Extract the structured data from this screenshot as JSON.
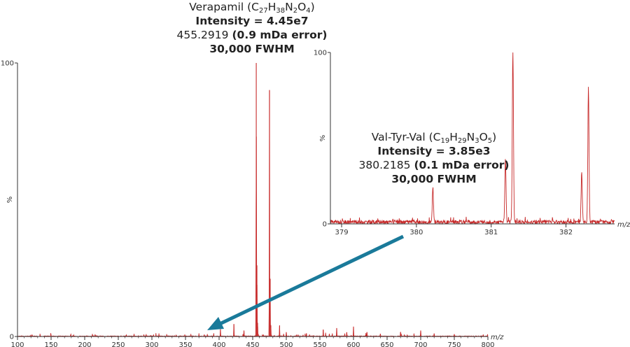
{
  "colors": {
    "spectrum": "#c62828",
    "arrow": "#1a7a9a",
    "axis": "#333333"
  },
  "annotations": {
    "verapamil": {
      "name": "Verapamil",
      "formula": [
        [
          "C",
          "27"
        ],
        [
          "H",
          "38"
        ],
        [
          "N",
          "2"
        ],
        [
          "O",
          "4"
        ]
      ],
      "intensity": "Intensity = 4.45e7",
      "mass": "455.2919",
      "error": "(0.9 mDa error)",
      "resolution": "30,000 FWHM"
    },
    "valtyrval": {
      "name": "Val-Tyr-Val",
      "formula": [
        [
          "C",
          "19"
        ],
        [
          "H",
          "29"
        ],
        [
          "N",
          "3"
        ],
        [
          "O",
          "5"
        ]
      ],
      "intensity": "Intensity = 3.85e3",
      "mass": "380.2185",
      "error": "(0.1 mDa error)",
      "resolution": "30,000 FWHM"
    }
  },
  "chart_data": [
    {
      "type": "line",
      "name": "main-spectrum",
      "xlabel": "m/z",
      "ylabel": "%",
      "xlim": [
        100,
        800
      ],
      "ylim": [
        0,
        100
      ],
      "x_ticks": [
        100,
        150,
        200,
        250,
        300,
        350,
        400,
        450,
        500,
        550,
        600,
        650,
        700,
        750,
        800
      ],
      "y_ticks": [
        0,
        100
      ],
      "peaks": [
        {
          "x": 402,
          "y": 2.5
        },
        {
          "x": 422,
          "y": 4.5
        },
        {
          "x": 437,
          "y": 2
        },
        {
          "x": 455.3,
          "y": 100
        },
        {
          "x": 456.3,
          "y": 26
        },
        {
          "x": 457.3,
          "y": 5
        },
        {
          "x": 475,
          "y": 90
        },
        {
          "x": 476,
          "y": 21
        },
        {
          "x": 477,
          "y": 4
        },
        {
          "x": 490,
          "y": 4
        },
        {
          "x": 500,
          "y": 1.5
        },
        {
          "x": 530,
          "y": 1
        },
        {
          "x": 555,
          "y": 2.5
        },
        {
          "x": 575,
          "y": 3
        },
        {
          "x": 590,
          "y": 1.5
        },
        {
          "x": 600,
          "y": 3.5
        },
        {
          "x": 620,
          "y": 1.5
        },
        {
          "x": 640,
          "y": 1
        },
        {
          "x": 670,
          "y": 1.5
        },
        {
          "x": 700,
          "y": 2
        },
        {
          "x": 720,
          "y": 1
        },
        {
          "x": 750,
          "y": 0.8
        }
      ]
    },
    {
      "type": "line",
      "name": "inset-spectrum",
      "xlabel": "m/z",
      "ylabel": "%",
      "xlim": [
        378.85,
        382.65
      ],
      "ylim": [
        0,
        100
      ],
      "x_ticks": [
        379,
        380,
        381,
        382
      ],
      "y_ticks": [
        0,
        100
      ],
      "peaks": [
        {
          "x": 380.22,
          "y": 20
        },
        {
          "x": 381.19,
          "y": 37
        },
        {
          "x": 381.29,
          "y": 100
        },
        {
          "x": 382.21,
          "y": 29
        },
        {
          "x": 382.3,
          "y": 78
        }
      ]
    }
  ]
}
